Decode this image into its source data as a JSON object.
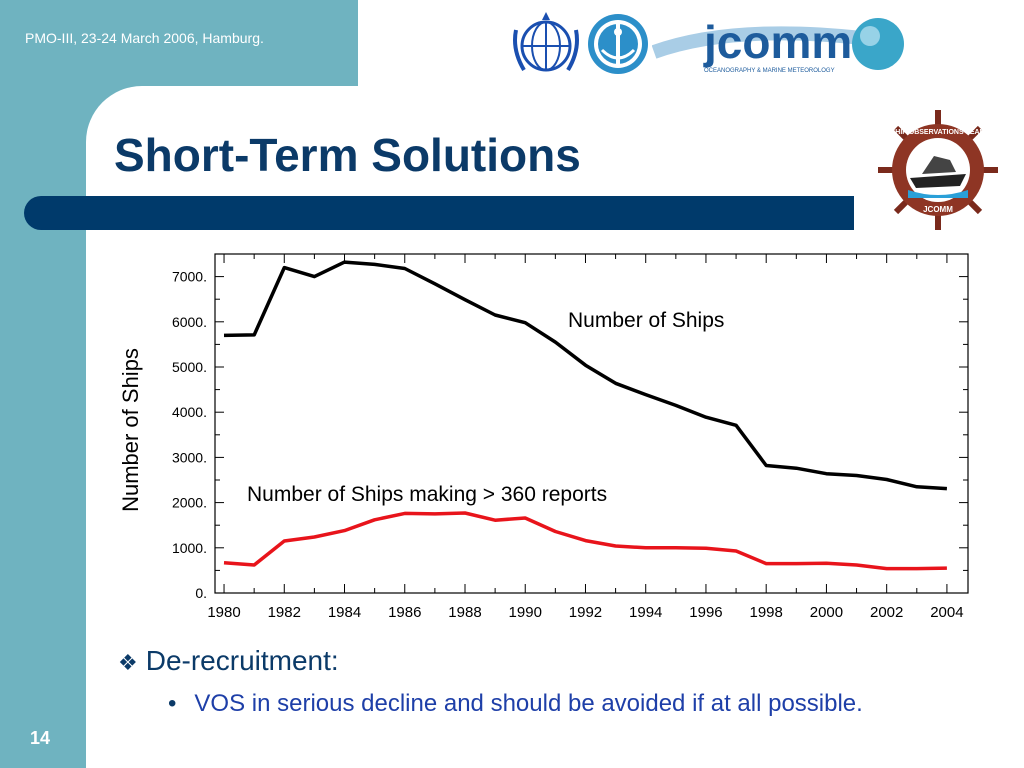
{
  "header": {
    "event_text": "PMO-III, 23-24 March 2006, Hamburg.",
    "page_number": "14"
  },
  "slide": {
    "title": "Short-Term Solutions",
    "bullet1": "De-recruitment:",
    "bullet2": "VOS in serious decline and should be avoided if at all possible."
  },
  "logos": {
    "wmo": "wmo-logo",
    "ioc": "ioc-logo",
    "jcomm": {
      "text": "jcomm",
      "tagline": "OCEANOGRAPHY & MARINE METEOROLOGY"
    },
    "sot": {
      "ring_top": "SHIP OBSERVATIONS TEAM",
      "ring_bottom": "JCOMM"
    }
  },
  "colors": {
    "sidebar": "#6fb3c0",
    "title": "#0b3a68",
    "bar": "#003a6b",
    "series_total": "#000000",
    "series_reports": "#e8141b"
  },
  "chart_data": {
    "type": "line",
    "ylabel": "Number of Ships",
    "xlabel": "",
    "xlim": [
      1979.7,
      2004.7
    ],
    "ylim": [
      0,
      7500
    ],
    "xticks": [
      1980,
      1982,
      1984,
      1986,
      1988,
      1990,
      1992,
      1994,
      1996,
      1998,
      2000,
      2002,
      2004
    ],
    "yticks": [
      0,
      1000,
      2000,
      3000,
      4000,
      5000,
      6000,
      7000
    ],
    "ytick_labels": [
      "0.",
      "1000.",
      "2000.",
      "3000.",
      "4000.",
      "5000.",
      "6000.",
      "7000."
    ],
    "series": [
      {
        "name": "Number of Ships",
        "color": "#000000",
        "x": [
          1980,
          1981,
          1982,
          1983,
          1984,
          1985,
          1986,
          1987,
          1988,
          1989,
          1990,
          1991,
          1992,
          1993,
          1994,
          1995,
          1996,
          1997,
          1998,
          1999,
          2000,
          2001,
          2002,
          2003,
          2004
        ],
        "y": [
          5700,
          5710,
          7200,
          7000,
          7320,
          7270,
          7180,
          6840,
          6490,
          6150,
          5980,
          5550,
          5040,
          4640,
          4390,
          4150,
          3890,
          3710,
          2820,
          2760,
          2640,
          2600,
          2510,
          2350,
          2310
        ]
      },
      {
        "name": "Number of Ships making > 360 reports",
        "color": "#e8141b",
        "x": [
          1980,
          1981,
          1982,
          1983,
          1984,
          1985,
          1986,
          1987,
          1988,
          1989,
          1990,
          1991,
          1992,
          1993,
          1994,
          1995,
          1996,
          1997,
          1998,
          1999,
          2000,
          2001,
          2002,
          2003,
          2004
        ],
        "y": [
          670,
          620,
          1150,
          1240,
          1380,
          1620,
          1760,
          1750,
          1770,
          1610,
          1660,
          1360,
          1160,
          1040,
          1000,
          1000,
          990,
          930,
          650,
          650,
          660,
          620,
          540,
          540,
          550
        ]
      }
    ],
    "annotations": [
      {
        "text": "Number of Ships",
        "series": 0
      },
      {
        "text": "Number of Ships making > 360 reports",
        "series": 1
      }
    ]
  }
}
